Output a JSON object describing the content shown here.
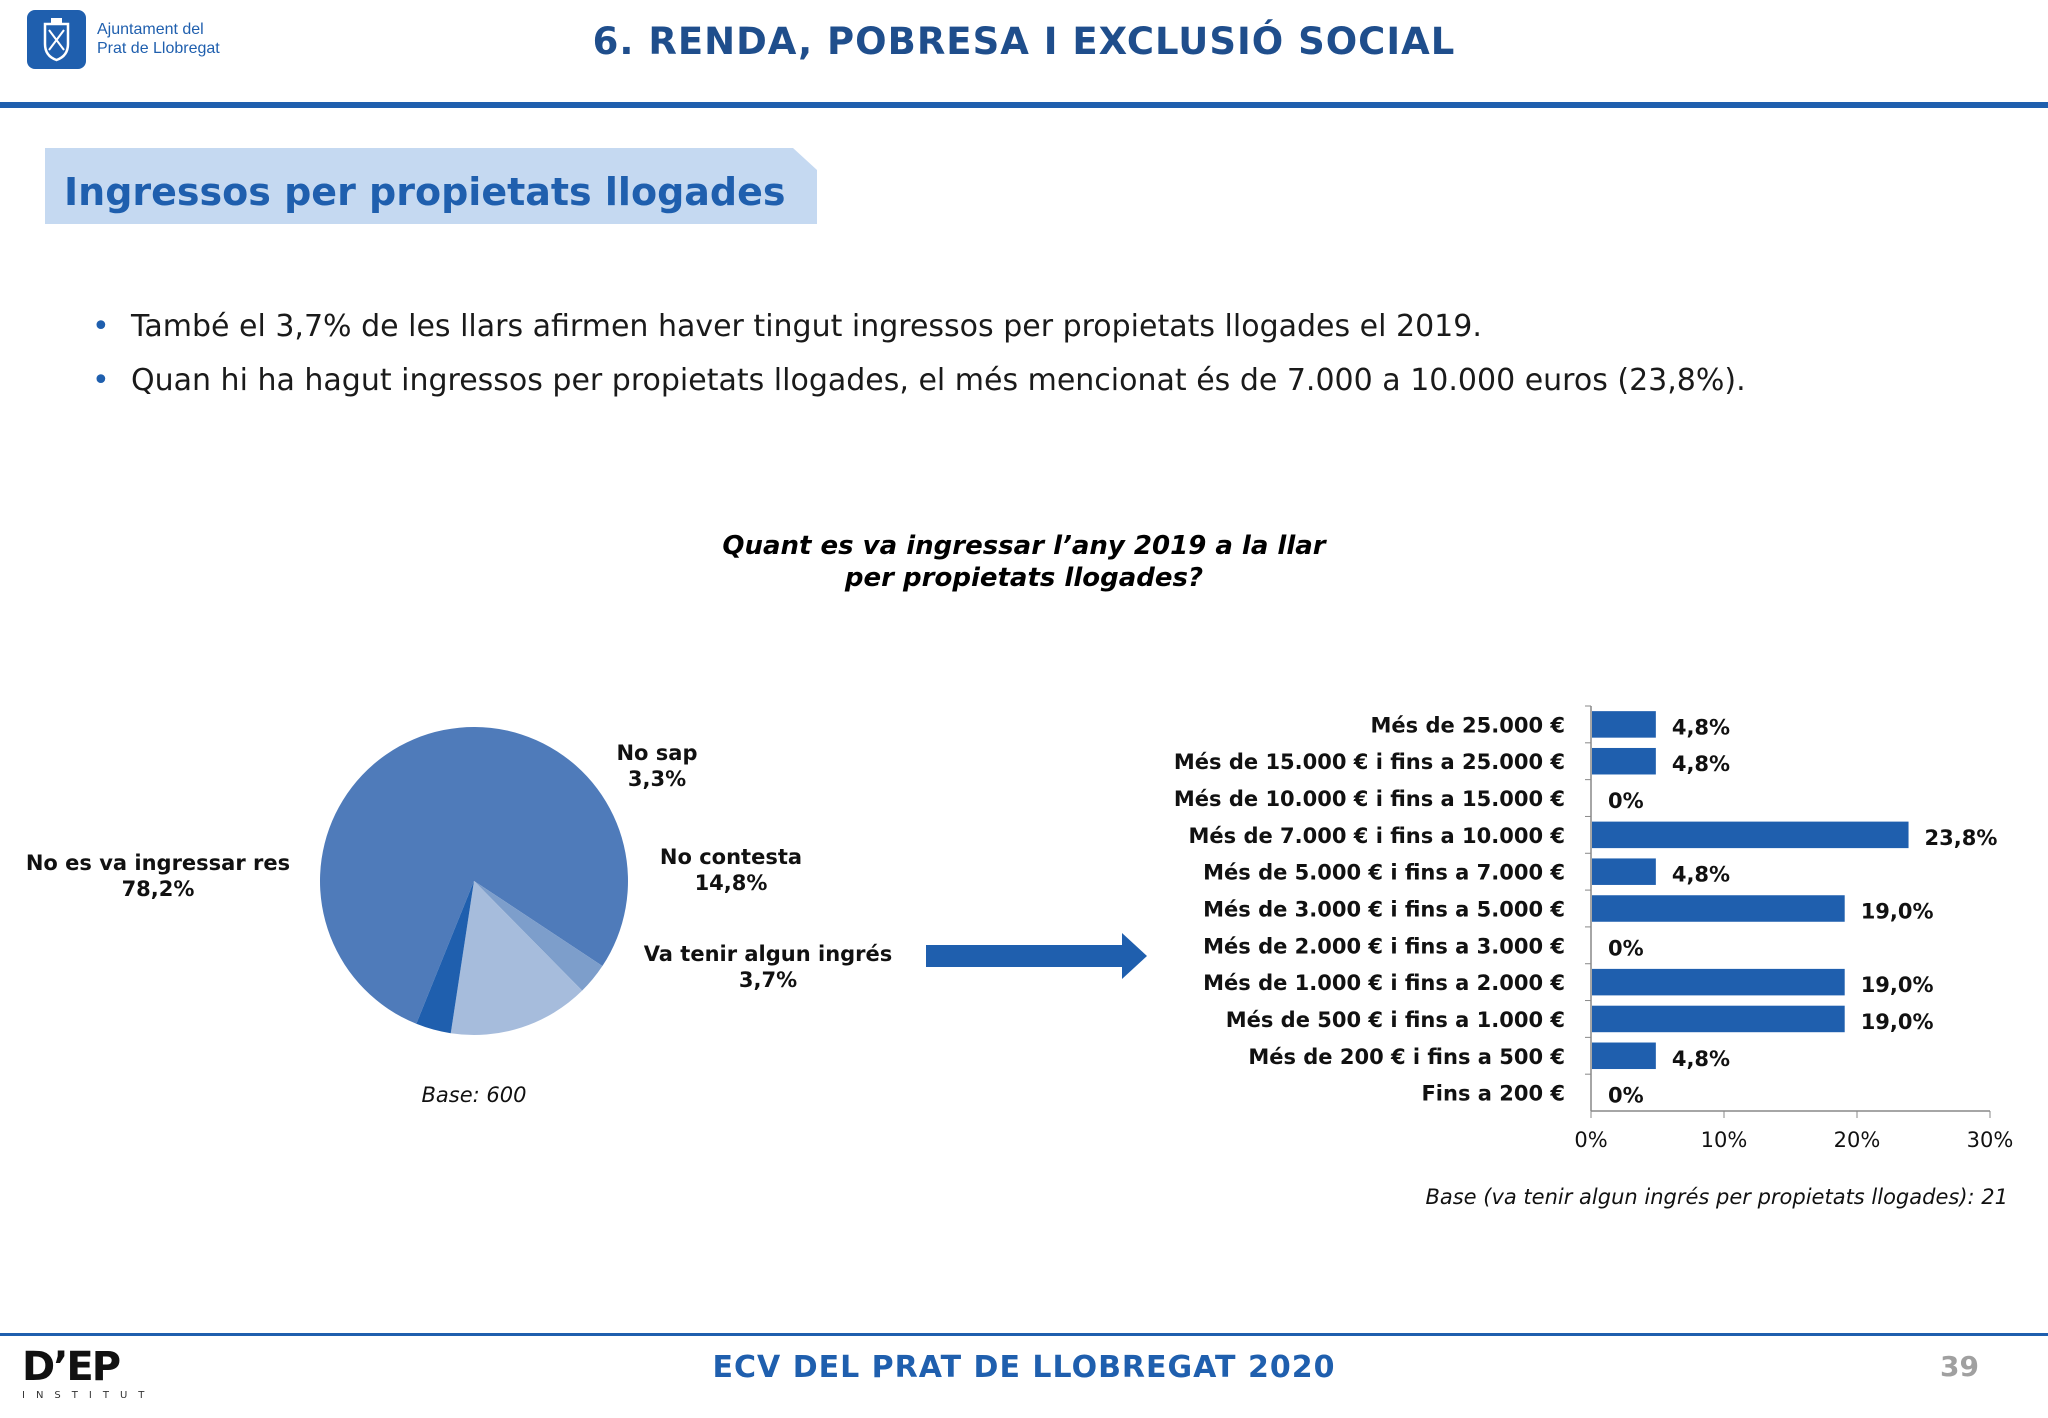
{
  "header": {
    "org_line1": "Ajuntament del",
    "org_line2": "Prat de Llobregat",
    "title": "6. RENDA, POBRESA I EXCLUSIÓ SOCIAL"
  },
  "section": {
    "title": "Ingressos per propietats llogades"
  },
  "bullets": [
    "També el 3,7% de les llars afirmen haver tingut ingressos per propietats llogades el 2019.",
    "Quan hi ha hagut ingressos per propietats llogades, el més mencionat és de 7.000 a 10.000 euros (23,8%)."
  ],
  "chart_title": {
    "line1": "Quant es va ingressar l’any 2019 a la llar",
    "line2": "per propietats llogades?"
  },
  "chart_data": [
    {
      "type": "pie",
      "base": "Base: 600",
      "slices": [
        {
          "label": "No es va ingressar res",
          "value": 78.2,
          "value_label": "78,2%",
          "color": "#4f7bba"
        },
        {
          "label": "No sap",
          "value": 3.3,
          "value_label": "3,3%",
          "color": "#7d9ecb"
        },
        {
          "label": "No contesta",
          "value": 14.8,
          "value_label": "14,8%",
          "color": "#a6bcdc"
        },
        {
          "label": "Va tenir algun ingrés",
          "value": 3.7,
          "value_label": "3,7%",
          "color": "#1f5fae"
        }
      ]
    },
    {
      "type": "bar",
      "orientation": "horizontal",
      "base": "Base (va tenir algun ingrés per propietats llogades): 21",
      "xlim": [
        0,
        30
      ],
      "xticks": [
        "0%",
        "10%",
        "20%",
        "30%"
      ],
      "bar_color": "#1f5fae",
      "categories": [
        "Més de 25.000 €",
        "Més de 15.000 € i fins a 25.000 €",
        "Més de 10.000 € i fins a 15.000 €",
        "Més de 7.000 € i fins a 10.000 €",
        "Més de 5.000 € i fins a 7.000 €",
        "Més de 3.000 € i fins a 5.000 €",
        "Més de 2.000 € i fins a 3.000 €",
        "Més de 1.000 € i fins a 2.000 €",
        "Més de 500 € i fins a 1.000 €",
        "Més de 200 € i fins a 500 €",
        "Fins a 200 €"
      ],
      "values": [
        4.8,
        4.8,
        0,
        23.8,
        4.8,
        19.0,
        0,
        19.0,
        19.0,
        4.8,
        0
      ],
      "value_labels": [
        "4,8%",
        "4,8%",
        "0%",
        "23,8%",
        "4,8%",
        "19,0%",
        "0%",
        "19,0%",
        "19,0%",
        "4,8%",
        "0%"
      ]
    }
  ],
  "footer": {
    "title": "ECV DEL PRAT DE LLOBREGAT 2020",
    "page": "39",
    "logo": "D’EP",
    "logo_sub": "INSTITUT"
  },
  "colors": {
    "brand_blue": "#1f5fae",
    "section_bg": "#c5d9f1"
  }
}
